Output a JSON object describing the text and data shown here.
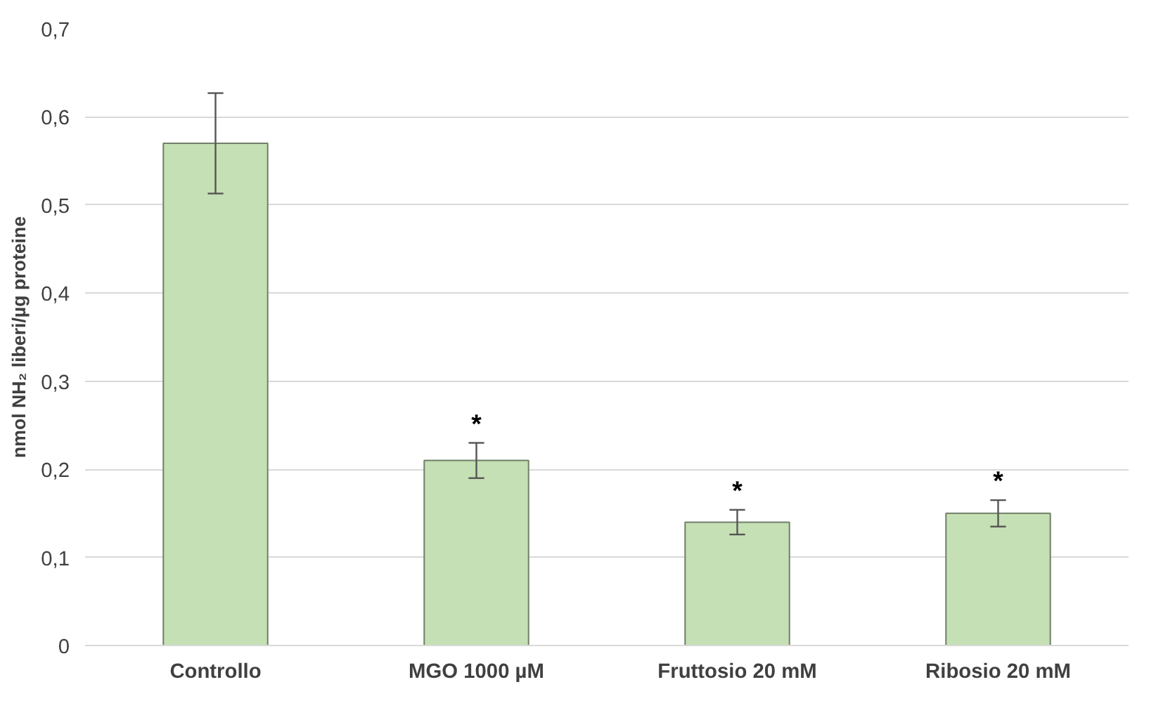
{
  "chart_data": {
    "type": "bar",
    "ylabel": "nmol NH₂ liberi/µg proteine",
    "categories": [
      "Controllo",
      "MGO 1000 µM",
      "Fruttosio 20 mM",
      "Ribosio 20 mM"
    ],
    "values": [
      0.57,
      0.21,
      0.14,
      0.15
    ],
    "errors": [
      0.057,
      0.02,
      0.014,
      0.015
    ],
    "color": "#c5e0b4",
    "ylim": [
      0,
      0.7
    ],
    "yticks": [
      0,
      {
        "value": 0.1,
        "label": "0,1"
      },
      {
        "value": 0.2,
        "label": "0,2"
      },
      {
        "value": 0.3,
        "label": "0,3"
      },
      {
        "value": 0.4,
        "label": "0,4"
      },
      {
        "value": 0.5,
        "label": "0,5"
      },
      {
        "value": 0.6,
        "label": "0,6"
      },
      {
        "value": 0.7,
        "label": "0,7"
      }
    ],
    "grid": "y",
    "annotations": [
      "*",
      "*",
      "*"
    ]
  }
}
